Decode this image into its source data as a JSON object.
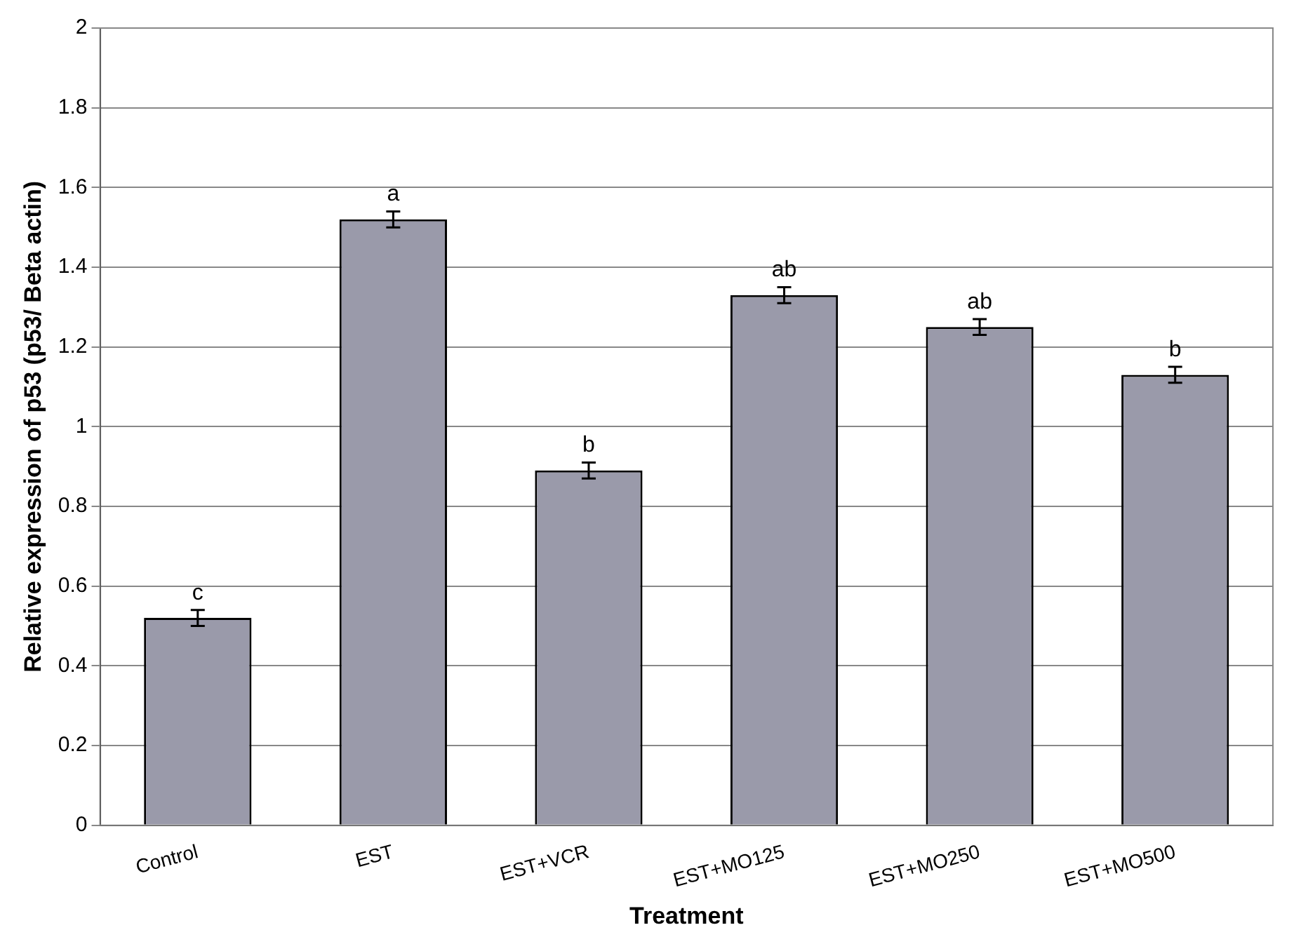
{
  "chart_data": {
    "type": "bar",
    "xlabel": "Treatment",
    "ylabel": "Relative expression of p53 (p53/ Beta actin)",
    "categories": [
      "Control",
      "EST",
      "EST+VCR",
      "EST+MO125",
      "EST+MO250",
      "EST+MO500"
    ],
    "values": [
      0.52,
      1.52,
      0.89,
      1.33,
      1.25,
      1.13
    ],
    "errors": [
      0.02,
      0.02,
      0.02,
      0.02,
      0.02,
      0.02
    ],
    "color": "#9a9aaa",
    "ylim": [
      0,
      2
    ],
    "yticks": [
      0,
      0.2,
      0.4,
      0.6,
      0.8,
      1,
      1.2,
      1.4,
      1.6,
      1.8,
      2
    ],
    "grid": "y",
    "legend": false,
    "annotations": [
      {
        "text": "c",
        "x": "Control",
        "y": 0.54
      },
      {
        "text": "a",
        "x": "EST",
        "y": 1.54
      },
      {
        "text": "b",
        "x": "EST+VCR",
        "y": 0.91
      },
      {
        "text": "ab",
        "x": "EST+MO125",
        "y": 1.35
      },
      {
        "text": "ab",
        "x": "EST+MO250",
        "y": 1.27
      },
      {
        "text": "b",
        "x": "EST+MO500",
        "y": 1.15
      }
    ]
  }
}
